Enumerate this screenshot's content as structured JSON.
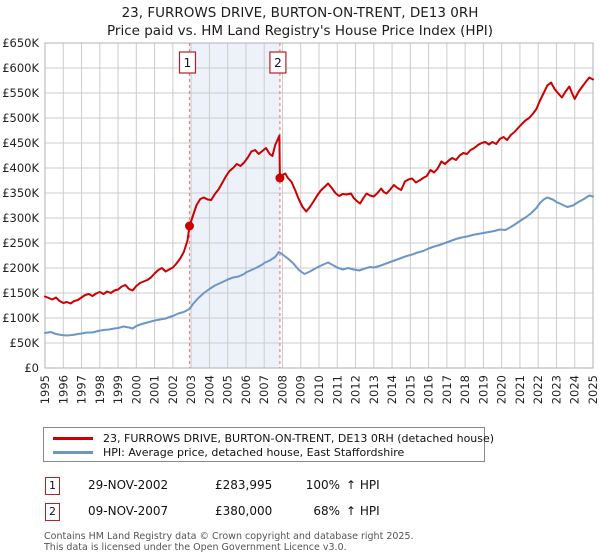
{
  "chart_data": {
    "type": "line",
    "title": "23, FURROWS DRIVE, BURTON-ON-TRENT, DE13 0RH",
    "subtitle": "Price paid vs. HM Land Registry's House Price Index (HPI)",
    "values_unit": "GBP thousands",
    "xlim": [
      1995,
      2025
    ],
    "ylim_k": [
      0,
      650
    ],
    "grid": true,
    "legend_position": "bottom",
    "y_ticks": [
      "£0",
      "£50K",
      "£100K",
      "£150K",
      "£200K",
      "£250K",
      "£300K",
      "£350K",
      "£400K",
      "£450K",
      "£500K",
      "£550K",
      "£600K",
      "£650K"
    ],
    "x_ticks": [
      "1995",
      "1996",
      "1997",
      "1998",
      "1999",
      "2000",
      "2001",
      "2002",
      "2003",
      "2004",
      "2005",
      "2006",
      "2007",
      "2008",
      "2009",
      "2010",
      "2011",
      "2012",
      "2013",
      "2014",
      "2015",
      "2016",
      "2017",
      "2018",
      "2019",
      "2020",
      "2021",
      "2022",
      "2023",
      "2024",
      "2025"
    ],
    "colors": {
      "property": "#cc0000",
      "hpi": "#6d96c6",
      "grid": "#cccccc",
      "plot_border": "#b0b0b0",
      "band": "#edf2fa",
      "dashed": "#ee8080",
      "marker": "#b22222"
    },
    "series": [
      {
        "id": "property",
        "name": "23, FURROWS DRIVE, BURTON-ON-TRENT, DE13 0RH (detached house)",
        "color": "#cc0000",
        "points": [
          [
            1995.0,
            143
          ],
          [
            1995.2,
            140
          ],
          [
            1995.4,
            137
          ],
          [
            1995.6,
            141
          ],
          [
            1995.8,
            134
          ],
          [
            1996.0,
            130
          ],
          [
            1996.2,
            132
          ],
          [
            1996.4,
            129
          ],
          [
            1996.6,
            134
          ],
          [
            1996.8,
            136
          ],
          [
            1997.0,
            141
          ],
          [
            1997.2,
            146
          ],
          [
            1997.4,
            148
          ],
          [
            1997.6,
            144
          ],
          [
            1997.8,
            149
          ],
          [
            1998.0,
            152
          ],
          [
            1998.2,
            148
          ],
          [
            1998.4,
            153
          ],
          [
            1998.6,
            150
          ],
          [
            1998.8,
            155
          ],
          [
            1999.0,
            157
          ],
          [
            1999.2,
            163
          ],
          [
            1999.4,
            166
          ],
          [
            1999.6,
            158
          ],
          [
            1999.8,
            155
          ],
          [
            2000.0,
            164
          ],
          [
            2000.2,
            170
          ],
          [
            2000.4,
            173
          ],
          [
            2000.6,
            176
          ],
          [
            2000.8,
            181
          ],
          [
            2001.0,
            189
          ],
          [
            2001.2,
            196
          ],
          [
            2001.4,
            200
          ],
          [
            2001.6,
            193
          ],
          [
            2001.8,
            197
          ],
          [
            2002.0,
            201
          ],
          [
            2002.2,
            209
          ],
          [
            2002.4,
            219
          ],
          [
            2002.6,
            232
          ],
          [
            2002.8,
            255
          ],
          [
            2002.91,
            283.995
          ],
          [
            2003.1,
            305
          ],
          [
            2003.3,
            326
          ],
          [
            2003.5,
            338
          ],
          [
            2003.7,
            341
          ],
          [
            2003.9,
            337
          ],
          [
            2004.1,
            336
          ],
          [
            2004.3,
            348
          ],
          [
            2004.5,
            357
          ],
          [
            2004.7,
            370
          ],
          [
            2004.9,
            383
          ],
          [
            2005.1,
            394
          ],
          [
            2005.3,
            400
          ],
          [
            2005.5,
            408
          ],
          [
            2005.7,
            404
          ],
          [
            2005.9,
            411
          ],
          [
            2006.1,
            421
          ],
          [
            2006.3,
            433
          ],
          [
            2006.5,
            436
          ],
          [
            2006.7,
            428
          ],
          [
            2006.9,
            434
          ],
          [
            2007.1,
            440
          ],
          [
            2007.3,
            428
          ],
          [
            2007.45,
            424
          ],
          [
            2007.6,
            446
          ],
          [
            2007.75,
            458
          ],
          [
            2007.83,
            465
          ],
          [
            2007.86,
            380
          ],
          [
            2008.0,
            386
          ],
          [
            2008.15,
            389
          ],
          [
            2008.3,
            380
          ],
          [
            2008.5,
            372
          ],
          [
            2008.7,
            355
          ],
          [
            2008.9,
            337
          ],
          [
            2009.1,
            322
          ],
          [
            2009.3,
            313
          ],
          [
            2009.5,
            322
          ],
          [
            2009.7,
            333
          ],
          [
            2009.9,
            345
          ],
          [
            2010.1,
            355
          ],
          [
            2010.3,
            362
          ],
          [
            2010.5,
            369
          ],
          [
            2010.7,
            360
          ],
          [
            2010.9,
            350
          ],
          [
            2011.1,
            344
          ],
          [
            2011.3,
            348
          ],
          [
            2011.5,
            347
          ],
          [
            2011.75,
            349
          ],
          [
            2011.9,
            340
          ],
          [
            2012.1,
            333
          ],
          [
            2012.25,
            329
          ],
          [
            2012.4,
            338
          ],
          [
            2012.6,
            349
          ],
          [
            2012.8,
            345
          ],
          [
            2013.0,
            343
          ],
          [
            2013.2,
            350
          ],
          [
            2013.4,
            359
          ],
          [
            2013.55,
            352
          ],
          [
            2013.7,
            349
          ],
          [
            2013.9,
            357
          ],
          [
            2014.1,
            366
          ],
          [
            2014.3,
            360
          ],
          [
            2014.5,
            356
          ],
          [
            2014.7,
            373
          ],
          [
            2014.9,
            377
          ],
          [
            2015.1,
            379
          ],
          [
            2015.3,
            371
          ],
          [
            2015.5,
            375
          ],
          [
            2015.7,
            380
          ],
          [
            2015.9,
            384
          ],
          [
            2016.1,
            396
          ],
          [
            2016.3,
            391
          ],
          [
            2016.5,
            399
          ],
          [
            2016.7,
            413
          ],
          [
            2016.9,
            408
          ],
          [
            2017.1,
            415
          ],
          [
            2017.3,
            420
          ],
          [
            2017.5,
            416
          ],
          [
            2017.7,
            425
          ],
          [
            2017.9,
            430
          ],
          [
            2018.1,
            428
          ],
          [
            2018.3,
            436
          ],
          [
            2018.5,
            440
          ],
          [
            2018.7,
            446
          ],
          [
            2018.9,
            450
          ],
          [
            2019.1,
            452
          ],
          [
            2019.3,
            447
          ],
          [
            2019.5,
            452
          ],
          [
            2019.7,
            448
          ],
          [
            2019.9,
            458
          ],
          [
            2020.1,
            462
          ],
          [
            2020.3,
            456
          ],
          [
            2020.5,
            466
          ],
          [
            2020.7,
            472
          ],
          [
            2020.9,
            480
          ],
          [
            2021.1,
            488
          ],
          [
            2021.3,
            495
          ],
          [
            2021.5,
            500
          ],
          [
            2021.7,
            508
          ],
          [
            2021.9,
            518
          ],
          [
            2022.1,
            535
          ],
          [
            2022.3,
            550
          ],
          [
            2022.5,
            565
          ],
          [
            2022.7,
            571
          ],
          [
            2022.9,
            558
          ],
          [
            2023.1,
            549
          ],
          [
            2023.3,
            541
          ],
          [
            2023.5,
            553
          ],
          [
            2023.7,
            563
          ],
          [
            2023.85,
            550
          ],
          [
            2024.0,
            538
          ],
          [
            2024.2,
            552
          ],
          [
            2024.4,
            562
          ],
          [
            2024.6,
            572
          ],
          [
            2024.8,
            581
          ],
          [
            2025.0,
            577
          ]
        ]
      },
      {
        "id": "hpi",
        "name": "HPI: Average price, detached house, East Staffordshire",
        "color": "#6d96c6",
        "points": [
          [
            1995.0,
            70
          ],
          [
            1995.3,
            72
          ],
          [
            1995.6,
            68
          ],
          [
            1995.9,
            66
          ],
          [
            1996.2,
            65
          ],
          [
            1996.5,
            66
          ],
          [
            1996.8,
            68
          ],
          [
            1997.0,
            69
          ],
          [
            1997.3,
            71
          ],
          [
            1997.6,
            71
          ],
          [
            1997.9,
            74
          ],
          [
            1998.2,
            76
          ],
          [
            1998.5,
            77
          ],
          [
            1998.8,
            79
          ],
          [
            1999.0,
            80
          ],
          [
            1999.3,
            83
          ],
          [
            1999.6,
            81
          ],
          [
            1999.8,
            79
          ],
          [
            2000.0,
            84
          ],
          [
            2000.3,
            88
          ],
          [
            2000.6,
            91
          ],
          [
            2000.9,
            94
          ],
          [
            2001.0,
            95
          ],
          [
            2001.3,
            97
          ],
          [
            2001.6,
            99
          ],
          [
            2001.9,
            103
          ],
          [
            2002.0,
            104
          ],
          [
            2002.3,
            109
          ],
          [
            2002.6,
            112
          ],
          [
            2002.91,
            118
          ],
          [
            2003.1,
            128
          ],
          [
            2003.4,
            140
          ],
          [
            2003.7,
            150
          ],
          [
            2004.0,
            158
          ],
          [
            2004.3,
            165
          ],
          [
            2004.6,
            170
          ],
          [
            2004.9,
            175
          ],
          [
            2005.0,
            177
          ],
          [
            2005.3,
            181
          ],
          [
            2005.6,
            183
          ],
          [
            2005.9,
            188
          ],
          [
            2006.0,
            191
          ],
          [
            2006.3,
            196
          ],
          [
            2006.6,
            201
          ],
          [
            2006.9,
            207
          ],
          [
            2007.0,
            210
          ],
          [
            2007.3,
            215
          ],
          [
            2007.6,
            222
          ],
          [
            2007.8,
            232
          ],
          [
            2007.86,
            231
          ],
          [
            2008.0,
            227
          ],
          [
            2008.3,
            219
          ],
          [
            2008.6,
            209
          ],
          [
            2008.9,
            196
          ],
          [
            2009.2,
            188
          ],
          [
            2009.5,
            193
          ],
          [
            2009.8,
            199
          ],
          [
            2010.0,
            203
          ],
          [
            2010.3,
            208
          ],
          [
            2010.5,
            211
          ],
          [
            2010.8,
            205
          ],
          [
            2011.0,
            201
          ],
          [
            2011.3,
            197
          ],
          [
            2011.6,
            200
          ],
          [
            2011.9,
            197
          ],
          [
            2012.2,
            195
          ],
          [
            2012.5,
            199
          ],
          [
            2012.8,
            202
          ],
          [
            2013.0,
            201
          ],
          [
            2013.3,
            204
          ],
          [
            2013.6,
            208
          ],
          [
            2013.9,
            212
          ],
          [
            2014.2,
            216
          ],
          [
            2014.5,
            220
          ],
          [
            2014.8,
            224
          ],
          [
            2015.1,
            227
          ],
          [
            2015.4,
            231
          ],
          [
            2015.7,
            234
          ],
          [
            2016.0,
            239
          ],
          [
            2016.3,
            243
          ],
          [
            2016.6,
            246
          ],
          [
            2016.9,
            250
          ],
          [
            2017.2,
            254
          ],
          [
            2017.5,
            258
          ],
          [
            2017.8,
            261
          ],
          [
            2018.1,
            263
          ],
          [
            2018.4,
            266
          ],
          [
            2018.7,
            268
          ],
          [
            2019.0,
            270
          ],
          [
            2019.3,
            272
          ],
          [
            2019.6,
            274
          ],
          [
            2019.9,
            277
          ],
          [
            2020.2,
            276
          ],
          [
            2020.5,
            282
          ],
          [
            2020.8,
            289
          ],
          [
            2021.0,
            294
          ],
          [
            2021.3,
            301
          ],
          [
            2021.6,
            309
          ],
          [
            2021.9,
            320
          ],
          [
            2022.1,
            330
          ],
          [
            2022.3,
            337
          ],
          [
            2022.5,
            341
          ],
          [
            2022.8,
            337
          ],
          [
            2023.0,
            332
          ],
          [
            2023.3,
            327
          ],
          [
            2023.6,
            322
          ],
          [
            2023.9,
            325
          ],
          [
            2024.2,
            332
          ],
          [
            2024.5,
            338
          ],
          [
            2024.8,
            345
          ],
          [
            2025.0,
            343
          ]
        ]
      }
    ],
    "sales": [
      {
        "label": "1",
        "year": 2002.91,
        "price_k": 283.995
      },
      {
        "label": "2",
        "year": 2007.86,
        "price_k": 380
      }
    ]
  },
  "transactions": [
    {
      "num": "1",
      "date": "29-NOV-2002",
      "price": "£283,995",
      "pct": "100%",
      "note": "↑ HPI"
    },
    {
      "num": "2",
      "date": "09-NOV-2007",
      "price": "£380,000",
      "pct": "68%",
      "note": "↑ HPI"
    }
  ],
  "footer": {
    "line1": "Contains HM Land Registry data © Crown copyright and database right 2025.",
    "line2": "This data is licensed under the Open Government Licence v3.0."
  }
}
